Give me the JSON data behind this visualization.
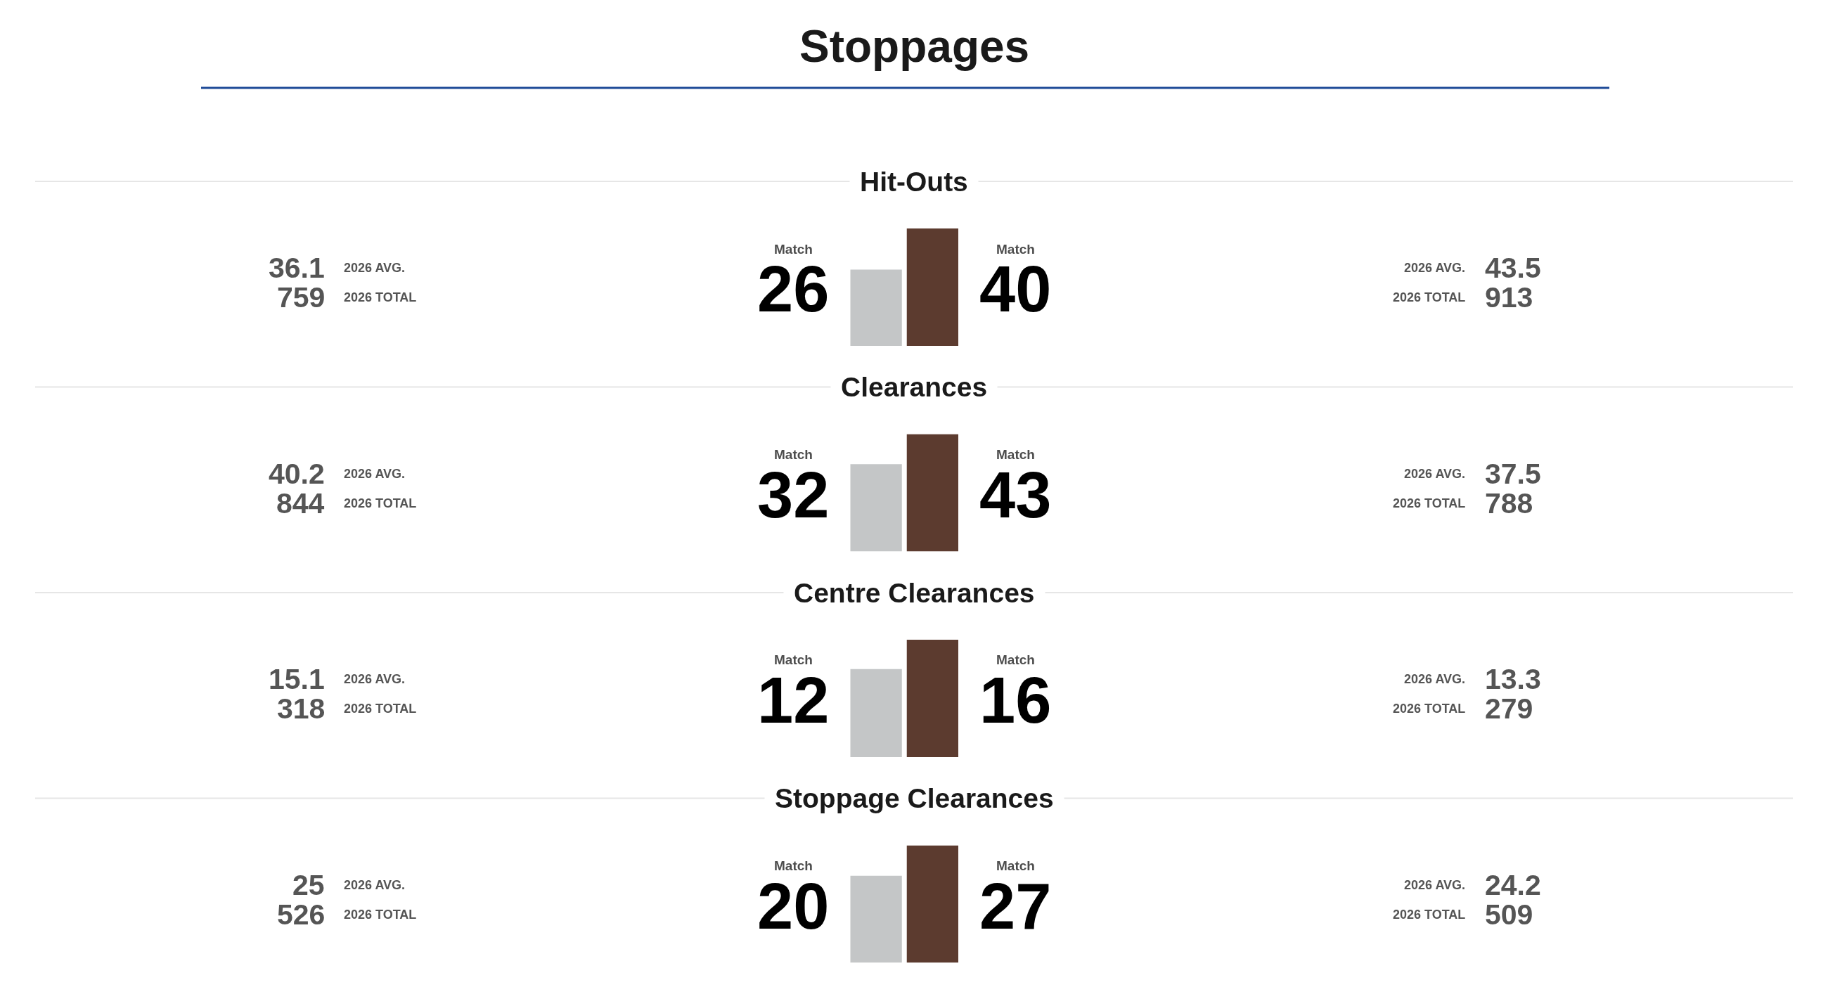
{
  "chart_data": [
    {
      "type": "other",
      "title": "Stoppages"
    },
    {
      "type": "bar",
      "title": "Hit-Outs",
      "categories": [
        null,
        null
      ],
      "values": [
        26,
        40
      ],
      "colors": [
        "#c4c6c7",
        "#5c3b2f"
      ],
      "data_labels": true,
      "annotations": [
        "Match",
        "Match",
        "36.1",
        "2026 AVG.",
        "759",
        "2026 TOTAL",
        "2026 AVG.",
        "43.5",
        "2026 TOTAL",
        "913"
      ]
    },
    {
      "type": "bar",
      "title": "Clearances",
      "categories": [
        null,
        null
      ],
      "values": [
        32,
        43
      ],
      "colors": [
        "#c4c6c7",
        "#5c3b2f"
      ],
      "data_labels": true,
      "annotations": [
        "Match",
        "Match",
        "40.2",
        "2026 AVG.",
        "844",
        "2026 TOTAL",
        "2026 AVG.",
        "37.5",
        "2026 TOTAL",
        "788"
      ]
    },
    {
      "type": "bar",
      "title": "Centre Clearances",
      "categories": [
        null,
        null
      ],
      "values": [
        12,
        16
      ],
      "colors": [
        "#c4c6c7",
        "#5c3b2f"
      ],
      "data_labels": true,
      "annotations": [
        "Match",
        "Match",
        "15.1",
        "2026 AVG.",
        "318",
        "2026 TOTAL",
        "2026 AVG.",
        "13.3",
        "2026 TOTAL",
        "279"
      ]
    },
    {
      "type": "bar",
      "title": "Stoppage Clearances",
      "categories": [
        null,
        null
      ],
      "values": [
        20,
        27
      ],
      "colors": [
        "#c4c6c7",
        "#5c3b2f"
      ],
      "data_labels": true,
      "annotations": [
        "Match",
        "Match",
        "25",
        "2026 AVG.",
        "526",
        "2026 TOTAL",
        "2026 AVG.",
        "24.2",
        "2026 TOTAL",
        "509"
      ]
    }
  ]
}
